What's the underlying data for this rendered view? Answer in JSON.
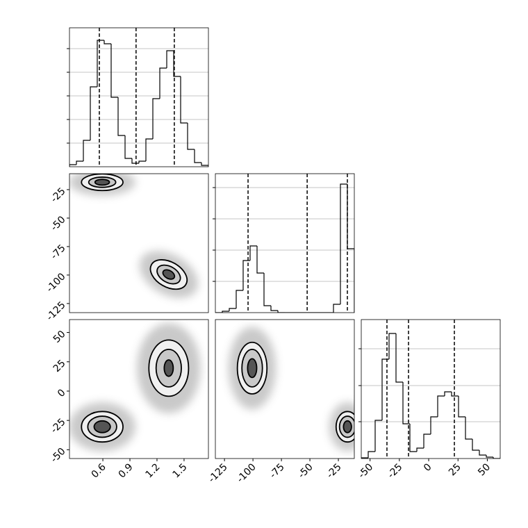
{
  "chart_data": [
    {
      "type": "histogram",
      "bins": [
        0.23,
        0.307,
        0.384,
        0.461,
        0.538,
        0.615,
        0.692,
        0.769,
        0.846,
        0.923,
        1.0,
        1.077,
        1.154,
        1.231,
        1.308,
        1.385,
        1.462,
        1.539,
        1.616,
        1.693,
        1.77
      ],
      "values": [
        3,
        8,
        38,
        115,
        182,
        177,
        100,
        45,
        12,
        5,
        8,
        40,
        98,
        142,
        167,
        130,
        63,
        25,
        6,
        2
      ],
      "xlim": [
        0.23,
        1.77
      ],
      "ylim": [
        0,
        200
      ],
      "yticks": [
        34,
        68,
        102,
        136,
        170
      ],
      "grid": true,
      "quantiles": [
        0.561,
        0.968,
        1.392
      ]
    },
    {
      "type": "contour",
      "xlim": [
        0.23,
        1.77
      ],
      "ylim": [
        -133,
        -11
      ],
      "yticks": [
        -25,
        -50,
        -75,
        -100,
        -125
      ],
      "clusters": [
        {
          "x": 0.593,
          "y": -18.5,
          "angle": 0,
          "levels": [
            {
              "sx": 0.23,
              "sy": 7.3
            },
            {
              "sx": 0.15,
              "sy": 4.5
            },
            {
              "sx": 0.08,
              "sy": 2.5
            }
          ]
        },
        {
          "x": 1.33,
          "y": -99.5,
          "angle": 30,
          "levels": [
            {
              "sx": 0.22,
              "sy": 11
            },
            {
              "sx": 0.14,
              "sy": 7
            },
            {
              "sx": 0.07,
              "sy": 3.5
            }
          ]
        }
      ]
    },
    {
      "type": "histogram",
      "bins": [
        -133,
        -126.9,
        -120.8,
        -114.7,
        -108.6,
        -102.5,
        -96.4,
        -90.3,
        -84.2,
        -78.1,
        -72,
        -65.9,
        -59.8,
        -53.7,
        -47.6,
        -41.5,
        -35.4,
        -29.3,
        -23.2,
        -17.1,
        -11
      ],
      "values": [
        0,
        2,
        6,
        32,
        75,
        96,
        57,
        10,
        3,
        0,
        0,
        0,
        0,
        0,
        0,
        0,
        0,
        12,
        185,
        92
      ],
      "xlim": [
        -133,
        -11
      ],
      "ylim": [
        0,
        200
      ],
      "yticks": [
        45,
        90,
        135,
        180
      ],
      "grid": true,
      "quantiles": [
        -104.3,
        -52.4,
        -17.1
      ]
    },
    {
      "type": "contour",
      "xlim": [
        0.23,
        1.77
      ],
      "ylim": [
        -57.5,
        61
      ],
      "xticks": [
        0.6,
        0.9,
        1.2,
        1.5
      ],
      "yticks": [
        -50,
        -25,
        0,
        25,
        50
      ],
      "clusters": [
        {
          "x": 0.593,
          "y": -30.4,
          "angle": 0,
          "levels": [
            {
              "sx": 0.23,
              "sy": 13
            },
            {
              "sx": 0.16,
              "sy": 9
            },
            {
              "sx": 0.09,
              "sy": 5
            }
          ]
        },
        {
          "x": 1.33,
          "y": 19.6,
          "angle": 0,
          "levels": [
            {
              "sx": 0.22,
              "sy": 24
            },
            {
              "sx": 0.14,
              "sy": 16
            },
            {
              "sx": 0.05,
              "sy": 7
            }
          ]
        }
      ]
    },
    {
      "type": "contour",
      "xlim": [
        -133,
        -11
      ],
      "ylim": [
        -57.5,
        61
      ],
      "xticks": [
        -125,
        -100,
        -75,
        -50,
        -25
      ],
      "clusters": [
        {
          "x": -100.7,
          "y": 19.6,
          "angle": 0,
          "levels": [
            {
              "sx": 13,
              "sy": 22
            },
            {
              "sx": 9,
              "sy": 16
            },
            {
              "sx": 4,
              "sy": 8
            }
          ]
        },
        {
          "x": -17,
          "y": -30.4,
          "angle": 0,
          "levels": [
            {
              "sx": 10,
              "sy": 13
            },
            {
              "sx": 7,
              "sy": 9
            },
            {
              "sx": 3.5,
              "sy": 5
            }
          ]
        }
      ]
    },
    {
      "type": "histogram",
      "bins": [
        -57.5,
        -51.575,
        -45.65,
        -39.725,
        -33.8,
        -27.875,
        -21.95,
        -16.025,
        -10.1,
        -4.175,
        1.75,
        7.675,
        13.6,
        19.525,
        25.45,
        31.375,
        37.3,
        43.225,
        49.15,
        55.075,
        61
      ],
      "values": [
        1,
        10,
        55,
        143,
        180,
        110,
        50,
        10,
        15,
        35,
        60,
        90,
        96,
        90,
        60,
        28,
        12,
        5,
        2,
        0
      ],
      "xlim": [
        -57.5,
        61
      ],
      "ylim": [
        0,
        200
      ],
      "xticks": [
        -50,
        -25,
        0,
        25,
        50
      ],
      "yticks": [
        53,
        105,
        158
      ],
      "grid": true,
      "quantiles": [
        -35.6,
        -17.2,
        21.9
      ]
    }
  ]
}
